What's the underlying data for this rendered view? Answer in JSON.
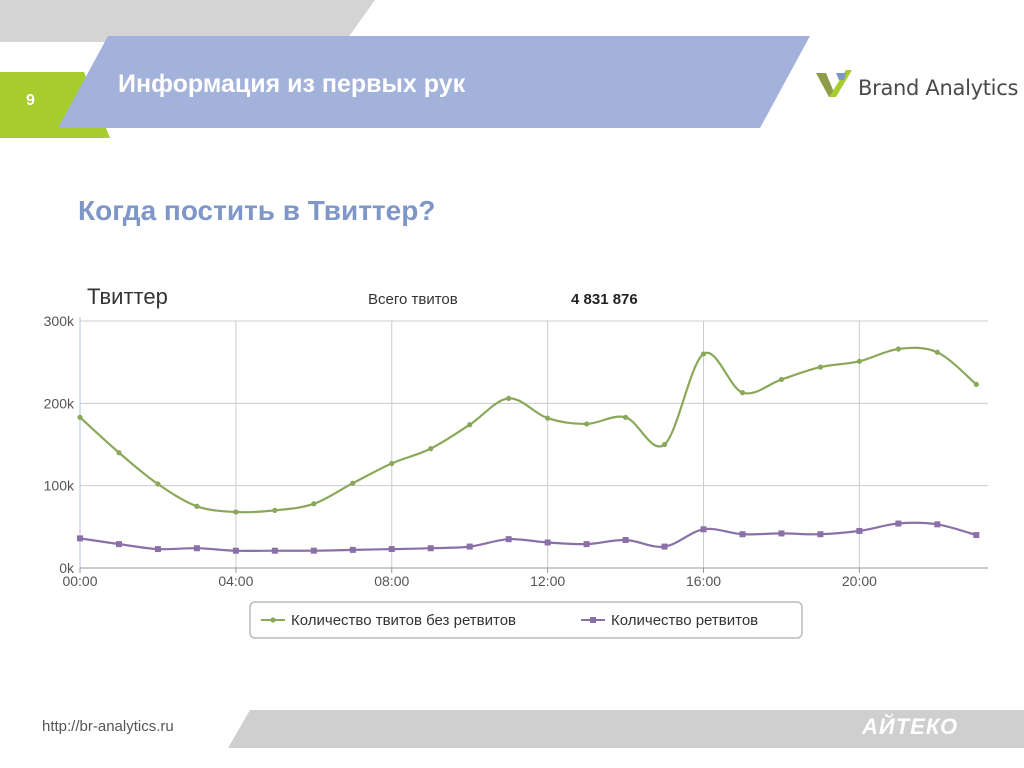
{
  "slide": {
    "page_number": "9",
    "header_title": "Информация из первых рук",
    "logo_text": "Brand Analytics",
    "subtitle": "Когда постить в Твиттер?",
    "footer_url": "http://br-analytics.ru",
    "footer_brand": "АЙТЕКО"
  },
  "colors": {
    "header_band": "#a3b2db",
    "grey_band": "#d4d4d4",
    "green_accent": "#a6cc2e",
    "subtitle": "#7f96c8",
    "series_no_rt": "#8aa85a",
    "series_rt": "#8a6fa8"
  },
  "chart_data": {
    "type": "line",
    "title": "Твиттер",
    "total_label": "Всего твитов",
    "total_value": "4 831 876",
    "x": [
      0,
      1,
      2,
      3,
      4,
      5,
      6,
      7,
      8,
      9,
      10,
      11,
      12,
      13,
      14,
      15,
      16,
      17,
      18,
      19,
      20,
      21,
      22,
      23
    ],
    "x_ticks": [
      "00:00",
      "04:00",
      "08:00",
      "12:00",
      "16:00",
      "20:00"
    ],
    "y_ticks": [
      "0k",
      "100k",
      "200k",
      "300k"
    ],
    "ylim": [
      0,
      300000
    ],
    "grid": true,
    "legend_position": "bottom",
    "series": [
      {
        "name": "Количество твитов без ретвитов",
        "values": [
          183000,
          140000,
          102000,
          75000,
          68000,
          70000,
          78000,
          103000,
          127000,
          145000,
          174000,
          206000,
          182000,
          175000,
          183000,
          150000,
          260000,
          213000,
          229000,
          244000,
          251000,
          266000,
          262000,
          223000
        ]
      },
      {
        "name": "Количество ретвитов",
        "values": [
          36000,
          29000,
          23000,
          24000,
          21000,
          21000,
          21000,
          22000,
          23000,
          24000,
          26000,
          35000,
          31000,
          29000,
          34000,
          26000,
          47000,
          41000,
          42000,
          41000,
          45000,
          54000,
          53000,
          40000
        ]
      }
    ]
  }
}
